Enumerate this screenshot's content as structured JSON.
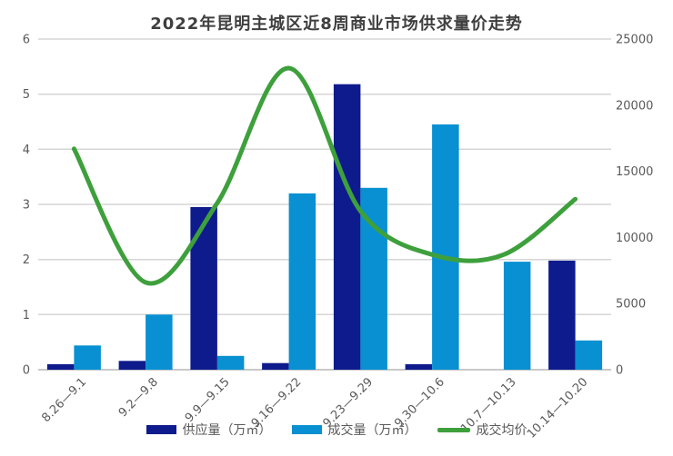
{
  "title": "2022年昆明主城区近8周商业市场供求量价走势",
  "colors": {
    "supply_bar": "#0e1b8d",
    "volume_bar": "#0890d2",
    "price_line": "#3ea03c",
    "gridline": "#d6d6d6",
    "axis_line": "#c9c9c9",
    "axis_text": "#595959",
    "title_text": "#3f3f3f"
  },
  "chart_data": {
    "type": "combo-bar-line",
    "title": "2022年昆明主城区近8周商业市场供求量价走势",
    "categories": [
      "8.26—9.1",
      "9.2—9.8",
      "9.9—9.15",
      "9.16—9.22",
      "9.23—9.29",
      "9.30—10.6",
      "10.7—10.13",
      "10.14—10.20"
    ],
    "series": [
      {
        "name": "供应量（万㎡）",
        "type": "bar",
        "axis": "left",
        "color": "#0e1b8d",
        "values": [
          0.1,
          0.16,
          2.95,
          0.12,
          5.18,
          0.1,
          0,
          1.98
        ]
      },
      {
        "name": "成交量（万㎡）",
        "type": "bar",
        "axis": "left",
        "color": "#0890d2",
        "values": [
          0.44,
          1.0,
          0.25,
          3.2,
          3.3,
          4.45,
          1.96,
          0.53
        ]
      },
      {
        "name": "成交均价",
        "type": "line",
        "axis": "right",
        "color": "#3ea03c",
        "smooth": true,
        "values": [
          16700,
          6600,
          12600,
          22800,
          12000,
          8700,
          8700,
          12900
        ]
      }
    ],
    "left_axis": {
      "min": 0,
      "max": 6,
      "ticks": [
        "0",
        "1",
        "2",
        "3",
        "4",
        "5",
        "6"
      ]
    },
    "right_axis": {
      "min": 0,
      "max": 25000,
      "ticks": [
        "0",
        "5000",
        "10000",
        "15000",
        "20000",
        "25000"
      ]
    },
    "grid": true,
    "legend_position": "bottom",
    "x_labels_rotation_deg": -45
  }
}
